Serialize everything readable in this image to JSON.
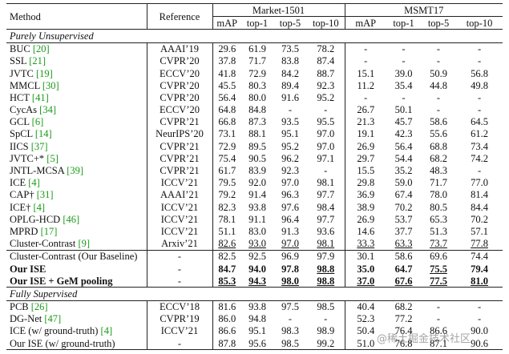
{
  "header": {
    "method": "Method",
    "reference": "Reference",
    "groups": [
      "Market-1501",
      "MSMT17"
    ],
    "metrics": [
      "mAP",
      "top-1",
      "top-5",
      "top-10",
      "mAP",
      "top-1",
      "top-5",
      "top-10"
    ]
  },
  "sections": [
    {
      "title": "Purely Unsupervised",
      "rows": [
        {
          "method": "BUC",
          "cite": "[20]",
          "reference": "AAAI’19",
          "values": [
            "29.6",
            "61.9",
            "73.5",
            "78.2",
            "-",
            "-",
            "-",
            "-"
          ]
        },
        {
          "method": "SSL",
          "cite": "[21]",
          "reference": "CVPR’20",
          "values": [
            "37.8",
            "71.7",
            "83.8",
            "87.4",
            "-",
            "-",
            "-",
            "-"
          ]
        },
        {
          "method": "JVTC",
          "cite": "[19]",
          "reference": "ECCV’20",
          "values": [
            "41.8",
            "72.9",
            "84.2",
            "88.7",
            "15.1",
            "39.0",
            "50.9",
            "56.8"
          ]
        },
        {
          "method": "MMCL",
          "cite": "[30]",
          "reference": "CVPR’20",
          "values": [
            "45.5",
            "80.3",
            "89.4",
            "92.3",
            "11.2",
            "35.4",
            "44.8",
            "49.8"
          ]
        },
        {
          "method": "HCT",
          "cite": "[41]",
          "reference": "CVPR’20",
          "values": [
            "56.4",
            "80.0",
            "91.6",
            "95.2",
            "-",
            "-",
            "-",
            "-"
          ]
        },
        {
          "method": "CycAs",
          "cite": "[34]",
          "reference": "ECCV’20",
          "values": [
            "64.8",
            "84.8",
            "-",
            "-",
            "26.7",
            "50.1",
            "-",
            "-"
          ]
        },
        {
          "method": "GCL",
          "cite": "[6]",
          "reference": "CVPR’21",
          "values": [
            "66.8",
            "87.3",
            "93.5",
            "95.5",
            "21.3",
            "45.7",
            "58.6",
            "64.5"
          ]
        },
        {
          "method": "SpCL",
          "cite": "[14]",
          "reference": "NeurIPS’20",
          "values": [
            "73.1",
            "88.1",
            "95.1",
            "97.0",
            "19.1",
            "42.3",
            "55.6",
            "61.2"
          ]
        },
        {
          "method": "IICS",
          "cite": "[37]",
          "reference": "CVPR’21",
          "values": [
            "72.9",
            "89.5",
            "95.2",
            "97.0",
            "26.9",
            "56.4",
            "68.8",
            "73.4"
          ]
        },
        {
          "method": "JVTC+*",
          "cite": "[5]",
          "reference": "CVPR’21",
          "values": [
            "75.4",
            "90.5",
            "96.2",
            "97.1",
            "29.7",
            "54.4",
            "68.2",
            "74.2"
          ]
        },
        {
          "method": "JNTL-MCSA",
          "cite": "[39]",
          "reference": "CVPR’21",
          "values": [
            "61.7",
            "83.9",
            "92.3",
            "-",
            "15.5",
            "35.2",
            "48.3",
            "-"
          ]
        },
        {
          "method": "ICE",
          "cite": "[4]",
          "reference": "ICCV’21",
          "values": [
            "79.5",
            "92.0",
            "97.0",
            "98.1",
            "29.8",
            "59.0",
            "71.7",
            "77.0"
          ]
        },
        {
          "method": "CAP†",
          "cite": "[31]",
          "reference": "AAAI’21",
          "values": [
            "79.2",
            "91.4",
            "96.3",
            "97.7",
            "36.9",
            "67.4",
            "78.0",
            "81.4"
          ]
        },
        {
          "method": "ICE†",
          "cite": "[4]",
          "reference": "ICCV’21",
          "values": [
            "82.3",
            "93.8",
            "97.6",
            "98.4",
            "38.9",
            "70.2",
            "80.5",
            "84.4"
          ]
        },
        {
          "method": "OPLG-HCD",
          "cite": "[46]",
          "reference": "ICCV’21",
          "values": [
            "78.1",
            "91.1",
            "96.4",
            "97.7",
            "26.9",
            "53.7",
            "65.3",
            "70.2"
          ]
        },
        {
          "method": "MPRD",
          "cite": "[17]",
          "reference": "ICCV’21",
          "values": [
            "51.1",
            "83.0",
            "91.3",
            "93.6",
            "14.6",
            "37.7",
            "51.3",
            "57.1"
          ]
        },
        {
          "method": "Cluster-Contrast",
          "cite": "[9]",
          "reference": "Arxiv’21",
          "values": [
            "82.6",
            "93.0",
            "97.0",
            "98.1",
            "33.3",
            "63.3",
            "73.7",
            "77.8"
          ],
          "underline": [
            0,
            1,
            2,
            3,
            4,
            5,
            6,
            7
          ]
        },
        {
          "method": "Cluster-Contrast (Our Baseline)",
          "reference": "-",
          "values": [
            "82.5",
            "92.5",
            "96.9",
            "97.9",
            "30.1",
            "58.6",
            "69.6",
            "74.4"
          ],
          "rule_above": true
        },
        {
          "method": "Our ISE",
          "reference": "-",
          "values": [
            "84.7",
            "94.0",
            "97.8",
            "98.8",
            "35.0",
            "64.7",
            "75.5",
            "79.4"
          ],
          "bold": true,
          "underline": [
            3,
            6
          ]
        },
        {
          "method": "Our ISE + GeM pooling",
          "reference": "-",
          "values": [
            "85.3",
            "94.3",
            "98.0",
            "98.8",
            "37.0",
            "67.6",
            "77.5",
            "81.0"
          ],
          "bold": true,
          "underline": [
            0,
            1,
            2,
            3,
            4,
            5,
            6,
            7
          ]
        }
      ]
    },
    {
      "title": "Fully Supervised",
      "rows": [
        {
          "method": "PCB",
          "cite": "[26]",
          "reference": "ECCV’18",
          "values": [
            "81.6",
            "93.8",
            "97.5",
            "98.5",
            "40.4",
            "68.2",
            "-",
            "-"
          ]
        },
        {
          "method": "DG-Net",
          "cite": "[47]",
          "reference": "CVPR’19",
          "values": [
            "86.0",
            "94.8",
            "-",
            "-",
            "52.3",
            "77.2",
            "-",
            "-"
          ]
        },
        {
          "method": "ICE (w/ ground-truth)",
          "cite": "[4]",
          "reference": "ICCV’21",
          "values": [
            "86.6",
            "95.1",
            "98.3",
            "98.9",
            "50.4",
            "76.4",
            "86.6",
            "90.0"
          ]
        },
        {
          "method": "Our ISE (w/ ground-truth)",
          "reference": "-",
          "values": [
            "87.8",
            "95.6",
            "98.5",
            "99.2",
            "51.0",
            "76.8",
            "87.1",
            "90.6"
          ]
        }
      ]
    }
  ],
  "watermark": "@稀土掘金技术社区"
}
